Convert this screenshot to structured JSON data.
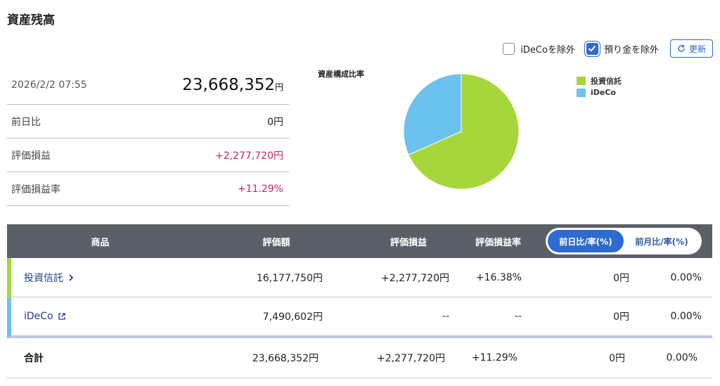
{
  "header": {
    "title": "資産残高"
  },
  "controls": {
    "exclude_ideco_label": "iDeCoを除外",
    "exclude_ideco_checked": false,
    "exclude_deposit_label": "預り金を除外",
    "exclude_deposit_checked": true,
    "refresh_label": "更新"
  },
  "summary": {
    "datetime": "2026/2/2 07:55",
    "total_value": "23,668,352",
    "total_unit": "円",
    "rows": [
      {
        "label": "前日比",
        "value": "0円"
      },
      {
        "label": "評価損益",
        "value": "+2,277,720円"
      },
      {
        "label": "評価損益率",
        "value": "+11.29%"
      }
    ]
  },
  "chart_data": {
    "type": "pie",
    "title": "資産構成比率",
    "categories": [
      "投資信託",
      "iDeCo"
    ],
    "values": [
      16177750,
      7490602
    ],
    "colors": [
      "#a6d63b",
      "#6cc2ee"
    ],
    "legend_position": "right"
  },
  "table": {
    "headers": {
      "name": "商品",
      "value": "評価額",
      "gain": "評価損益",
      "rate": "評価損益率"
    },
    "toggle": {
      "day_label": "前日比/率(%)",
      "month_label": "前月比/率(%)",
      "active": "day"
    },
    "rows": [
      {
        "name": "投資信託",
        "value": "16,177,750円",
        "gain": "+2,277,720円",
        "rate": "+16.38%",
        "day": "0円",
        "day_rate": "0.00%"
      },
      {
        "name": "iDeCo",
        "value": "7,490,602円",
        "gain": "--",
        "rate": "--",
        "day": "0円",
        "day_rate": "0.00%"
      }
    ],
    "total": {
      "name": "合計",
      "value": "23,668,352円",
      "gain": "+2,277,720円",
      "rate": "+11.29%",
      "day": "0円",
      "day_rate": "0.00%"
    }
  }
}
